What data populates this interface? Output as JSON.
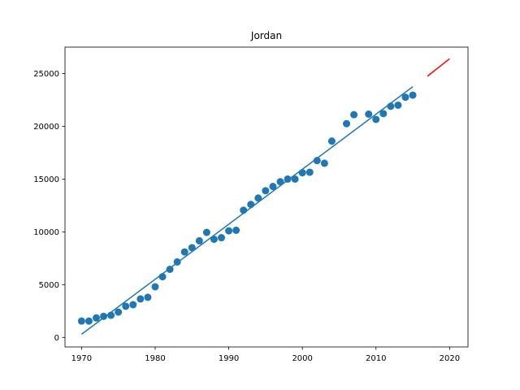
{
  "chart_data": {
    "type": "scatter",
    "title": "Jordan",
    "xlabel": "",
    "ylabel": "",
    "xlim": [
      1967.75,
      2022.5
    ],
    "ylim": [
      -900,
      27500
    ],
    "x_ticks": [
      1970,
      1980,
      1990,
      2000,
      2010,
      2020
    ],
    "y_ticks": [
      0,
      5000,
      10000,
      15000,
      20000,
      25000
    ],
    "grid": false,
    "legend": "none",
    "series": [
      {
        "kind": "scatter",
        "color": "#1f77b4",
        "x": [
          1970,
          1971,
          1972,
          1973,
          1974,
          1975,
          1976,
          1977,
          1978,
          1979,
          1980,
          1981,
          1982,
          1983,
          1984,
          1985,
          1986,
          1987,
          1988,
          1989,
          1990,
          1991,
          1992,
          1993,
          1994,
          1995,
          1996,
          1997,
          1998,
          1999,
          2000,
          2001,
          2002,
          2003,
          2004,
          2006,
          2007,
          2009,
          2010,
          2011,
          2012,
          2013,
          2014,
          2015
        ],
        "y": [
          1550,
          1550,
          1850,
          2000,
          2100,
          2400,
          2950,
          3100,
          3650,
          3800,
          4800,
          5750,
          6450,
          7150,
          8100,
          8500,
          9150,
          9950,
          9300,
          9450,
          10100,
          10150,
          12050,
          12600,
          13200,
          13900,
          14300,
          14750,
          15000,
          15000,
          15600,
          15650,
          16750,
          16500,
          18600,
          20250,
          21100,
          21150,
          20650,
          21200,
          21900,
          22000,
          22750,
          22950
        ]
      },
      {
        "kind": "line",
        "color": "#1f77b4",
        "x": [
          1970,
          2015
        ],
        "y": [
          300,
          23750
        ]
      },
      {
        "kind": "line",
        "color": "#ff0000",
        "x": [
          2017,
          2020
        ],
        "y": [
          24750,
          26400
        ]
      }
    ]
  }
}
